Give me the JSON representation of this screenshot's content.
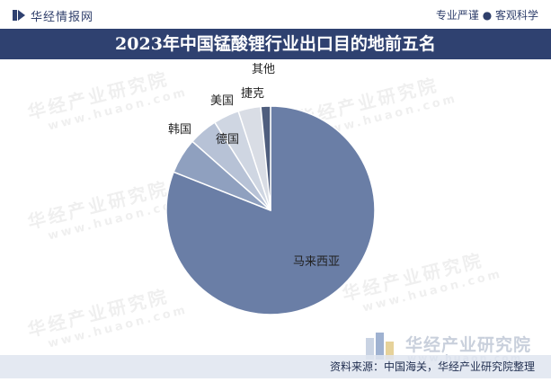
{
  "header": {
    "site_name": "华经情报网",
    "slogan": "专业严谨 ● 客观科学"
  },
  "watermark": {
    "text": "华经产业研究院",
    "url": "www.huaon.com"
  },
  "footer": {
    "brand": "华经产业研究院",
    "brand_url": "www.huaon.com",
    "source": "资料来源：中国海关，华经产业研究院整理"
  },
  "colors": {
    "title_bg": "#2f4170",
    "main_slice": "#6a7ea6",
    "second_slice": "#8fa0bf",
    "third_slice": "#b7c2d6",
    "fourth_slice": "#cfd6e2",
    "fifth_slice": "#d9dde5",
    "other_slice": "#4f5e7e"
  },
  "chart_data": {
    "type": "pie",
    "title": "2023年中国锰酸锂行业出口目的地前五名",
    "slices": [
      {
        "label": "马来西亚",
        "value": 81.0
      },
      {
        "label": "韩国",
        "value": 5.5
      },
      {
        "label": "德国",
        "value": 4.5
      },
      {
        "label": "美国",
        "value": 4.0
      },
      {
        "label": "捷克",
        "value": 3.5
      },
      {
        "label": "其他",
        "value": 1.5
      }
    ],
    "start": "12 o'clock",
    "direction": "clockwise"
  }
}
